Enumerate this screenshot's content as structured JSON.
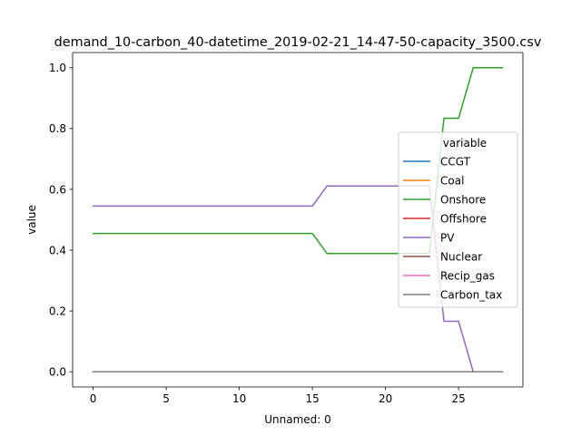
{
  "chart_data": {
    "type": "line",
    "title": "demand_10-carbon_40-datetime_2019-02-21_14-47-50-capacity_3500.csv",
    "xlabel": "Unnamed: 0",
    "ylabel": "value",
    "xlim": [
      -1.4,
      29.4
    ],
    "ylim": [
      -0.05,
      1.05
    ],
    "xticks": [
      0,
      5,
      10,
      15,
      20,
      25
    ],
    "yticks": [
      0.0,
      0.2,
      0.4,
      0.6,
      0.8,
      1.0
    ],
    "xtick_labels": [
      "0",
      "5",
      "10",
      "15",
      "20",
      "25"
    ],
    "ytick_labels": [
      "0.0",
      "0.2",
      "0.4",
      "0.6",
      "0.8",
      "1.0"
    ],
    "grid": false,
    "legend": {
      "title": "variable",
      "placement": "right"
    },
    "x": [
      0,
      1,
      2,
      3,
      4,
      5,
      6,
      7,
      8,
      9,
      10,
      11,
      12,
      13,
      14,
      15,
      16,
      17,
      18,
      19,
      20,
      21,
      22,
      23,
      24,
      25,
      26,
      27,
      28
    ],
    "series": [
      {
        "name": "CCGT",
        "color": "#1f77b4",
        "values": [
          0,
          0,
          0,
          0,
          0,
          0,
          0,
          0,
          0,
          0,
          0,
          0,
          0,
          0,
          0,
          0,
          0,
          0,
          0,
          0,
          0,
          0,
          0,
          0,
          0,
          0,
          0,
          0,
          0
        ]
      },
      {
        "name": "Coal",
        "color": "#ff7f0e",
        "values": [
          0,
          0,
          0,
          0,
          0,
          0,
          0,
          0,
          0,
          0,
          0,
          0,
          0,
          0,
          0,
          0,
          0,
          0,
          0,
          0,
          0,
          0,
          0,
          0,
          0,
          0,
          0,
          0,
          0
        ]
      },
      {
        "name": "Onshore",
        "color": "#2ca02c",
        "values": [
          0.455,
          0.455,
          0.455,
          0.455,
          0.455,
          0.455,
          0.455,
          0.455,
          0.455,
          0.455,
          0.455,
          0.455,
          0.455,
          0.455,
          0.455,
          0.455,
          0.389,
          0.389,
          0.389,
          0.389,
          0.389,
          0.389,
          0.389,
          0.389,
          0.834,
          0.834,
          1.0,
          1.0,
          1.0
        ]
      },
      {
        "name": "Offshore",
        "color": "#d62728",
        "values": [
          0,
          0,
          0,
          0,
          0,
          0,
          0,
          0,
          0,
          0,
          0,
          0,
          0,
          0,
          0,
          0,
          0,
          0,
          0,
          0,
          0,
          0,
          0,
          0,
          0,
          0,
          0,
          0,
          0
        ]
      },
      {
        "name": "PV",
        "color": "#9467bd",
        "values": [
          0.545,
          0.545,
          0.545,
          0.545,
          0.545,
          0.545,
          0.545,
          0.545,
          0.545,
          0.545,
          0.545,
          0.545,
          0.545,
          0.545,
          0.545,
          0.545,
          0.611,
          0.611,
          0.611,
          0.611,
          0.611,
          0.611,
          0.611,
          0.611,
          0.166,
          0.166,
          0.0,
          0.0,
          0.0
        ]
      },
      {
        "name": "Nuclear",
        "color": "#8c564b",
        "values": [
          0,
          0,
          0,
          0,
          0,
          0,
          0,
          0,
          0,
          0,
          0,
          0,
          0,
          0,
          0,
          0,
          0,
          0,
          0,
          0,
          0,
          0,
          0,
          0,
          0,
          0,
          0,
          0,
          0
        ]
      },
      {
        "name": "Recip_gas",
        "color": "#e377c2",
        "values": [
          0,
          0,
          0,
          0,
          0,
          0,
          0,
          0,
          0,
          0,
          0,
          0,
          0,
          0,
          0,
          0,
          0,
          0,
          0,
          0,
          0,
          0,
          0,
          0,
          0,
          0,
          0,
          0,
          0
        ]
      },
      {
        "name": "Carbon_tax",
        "color": "#7f7f7f",
        "values": [
          0,
          0,
          0,
          0,
          0,
          0,
          0,
          0,
          0,
          0,
          0,
          0,
          0,
          0,
          0,
          0,
          0,
          0,
          0,
          0,
          0,
          0,
          0,
          0,
          0,
          0,
          0,
          0,
          0
        ]
      }
    ]
  }
}
